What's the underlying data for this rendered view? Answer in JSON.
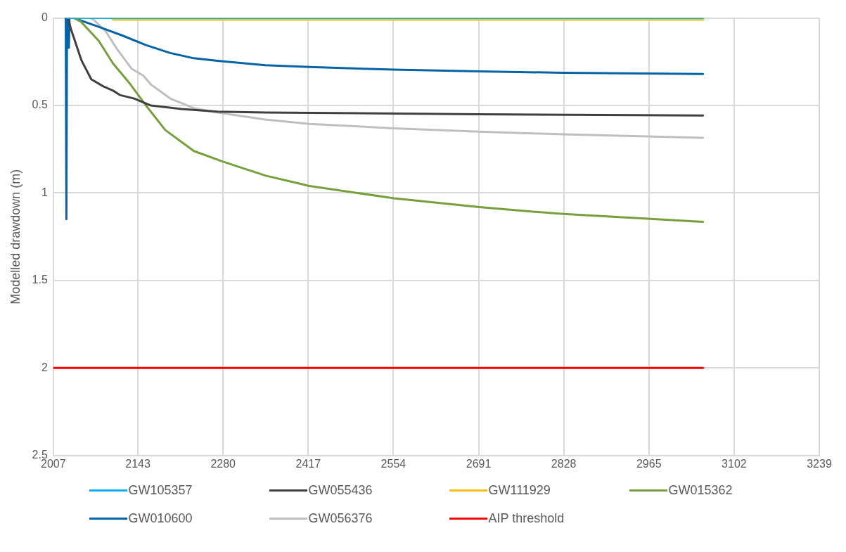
{
  "chart_data": {
    "type": "line",
    "ylabel": "Modelled drawdown (m)",
    "xlim": [
      2007,
      3239
    ],
    "xticks": [
      2007,
      2143,
      2280,
      2417,
      2554,
      2691,
      2828,
      2965,
      3102,
      3239
    ],
    "ylim": [
      2.5,
      0
    ],
    "yticks": [
      0,
      0.5,
      1,
      1.5,
      2,
      2.5
    ],
    "grid": true,
    "legend": "bottom",
    "marker": "none",
    "series": [
      {
        "name": "GW105357",
        "color": "#00b0f0",
        "x": [
          2030,
          3052
        ],
        "values": [
          0,
          0
        ]
      },
      {
        "name": "GW055436",
        "color": "#404040",
        "x": [
          2031,
          2035,
          2052,
          2068,
          2087,
          2103,
          2114,
          2137,
          2164,
          2213,
          2271,
          2348,
          2692,
          3052
        ],
        "values": [
          0,
          0.06,
          0.24,
          0.35,
          0.39,
          0.415,
          0.44,
          0.46,
          0.5,
          0.52,
          0.535,
          0.54,
          0.55,
          0.557
        ]
      },
      {
        "name": "GW111929",
        "color": "#ffc000",
        "x": [
          2030,
          2100,
          2104,
          3052
        ],
        "values": [
          0,
          0,
          0.01,
          0.01
        ]
      },
      {
        "name": "GW015362",
        "color": "#77a03c",
        "x": [
          2040,
          2051,
          2080,
          2103,
          2129,
          2156,
          2187,
          2233,
          2279,
          2348,
          2419,
          2555,
          2692,
          2755,
          2828,
          3052
        ],
        "values": [
          0,
          0.02,
          0.13,
          0.26,
          0.37,
          0.5,
          0.64,
          0.76,
          0.82,
          0.9,
          0.96,
          1.03,
          1.08,
          1.1,
          1.12,
          1.165
        ]
      },
      {
        "name": "GW010600",
        "color": "#0563a6",
        "x": [
          2027,
          2028,
          2029,
          2031,
          2032,
          2033,
          2040,
          2080,
          2118,
          2156,
          2195,
          2233,
          2271,
          2348,
          2419,
          2555,
          2692,
          2828,
          3052
        ],
        "values": [
          0,
          1.15,
          0,
          0,
          0.17,
          0,
          0,
          0.05,
          0.1,
          0.155,
          0.2,
          0.23,
          0.245,
          0.27,
          0.28,
          0.295,
          0.305,
          0.313,
          0.32
        ]
      },
      {
        "name": "GW056376",
        "color": "#bfbfbf",
        "x": [
          2040,
          2066,
          2072,
          2091,
          2110,
          2133,
          2152,
          2164,
          2195,
          2233,
          2271,
          2348,
          2419,
          2555,
          2692,
          2828,
          3052
        ],
        "values": [
          0,
          0,
          0.01,
          0.075,
          0.18,
          0.29,
          0.33,
          0.38,
          0.46,
          0.515,
          0.54,
          0.58,
          0.605,
          0.63,
          0.65,
          0.665,
          0.685
        ]
      },
      {
        "name": "AIP threshold",
        "color": "#ff0000",
        "x": [
          2007,
          3052
        ],
        "values": [
          2,
          2
        ]
      }
    ]
  }
}
